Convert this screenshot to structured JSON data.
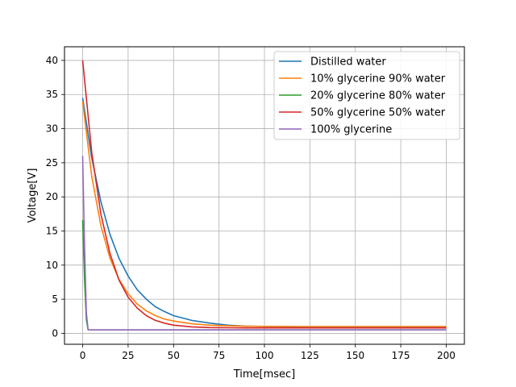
{
  "chart_data": {
    "type": "line",
    "title": "",
    "xlabel": "Time[msec]",
    "ylabel": "Voltage[V]",
    "xlim": [
      -10,
      210
    ],
    "ylim": [
      -1.6,
      42
    ],
    "x_ticks": [
      0,
      25,
      50,
      75,
      100,
      125,
      150,
      175,
      200
    ],
    "y_ticks": [
      0,
      5,
      10,
      15,
      20,
      25,
      30,
      35,
      40
    ],
    "grid": true,
    "legend_position": "upper right",
    "series": [
      {
        "name": "Distilled water",
        "color": "#1f77b4",
        "x": [
          0,
          5,
          10,
          15,
          20,
          25,
          30,
          35,
          40,
          45,
          50,
          60,
          70,
          80,
          90,
          100,
          125,
          150,
          175,
          200
        ],
        "y": [
          34.5,
          25.7,
          19.3,
          14.5,
          11.0,
          8.4,
          6.4,
          5.0,
          3.9,
          3.2,
          2.6,
          1.9,
          1.5,
          1.2,
          1.05,
          1.0,
          0.95,
          0.93,
          0.92,
          0.92
        ]
      },
      {
        "name": "10% glycerine 90% water",
        "color": "#ff7f0e",
        "x": [
          0,
          5,
          10,
          15,
          20,
          25,
          30,
          35,
          40,
          45,
          50,
          60,
          70,
          80,
          90,
          100,
          125,
          150,
          175,
          200
        ],
        "y": [
          34.0,
          23.0,
          15.8,
          11.0,
          7.9,
          5.8,
          4.3,
          3.3,
          2.6,
          2.1,
          1.8,
          1.4,
          1.2,
          1.1,
          1.05,
          1.02,
          1.0,
          1.0,
          1.0,
          1.0
        ]
      },
      {
        "name": "20% glycerine 80% water",
        "color": "#2ca02c",
        "x": [
          0,
          1,
          2,
          3,
          50,
          100,
          150,
          200
        ],
        "y": [
          16.6,
          8.0,
          2.0,
          0.5,
          0.5,
          0.5,
          0.5,
          0.5
        ]
      },
      {
        "name": "50% glycerine 50% water",
        "color": "#d62728",
        "x": [
          0,
          5,
          10,
          15,
          20,
          25,
          30,
          35,
          40,
          45,
          50,
          60,
          70,
          80,
          90,
          100,
          125,
          150,
          175,
          200
        ],
        "y": [
          40.0,
          26.5,
          17.5,
          11.7,
          7.8,
          5.3,
          3.7,
          2.6,
          1.9,
          1.5,
          1.2,
          0.95,
          0.85,
          0.82,
          0.8,
          0.8,
          0.8,
          0.8,
          0.8,
          0.8
        ]
      },
      {
        "name": "100% glycerine",
        "color": "#9467bd",
        "x": [
          0,
          1,
          2,
          3,
          50,
          100,
          150,
          200
        ],
        "y": [
          26.0,
          13.0,
          3.0,
          0.5,
          0.5,
          0.5,
          0.5,
          0.5
        ]
      }
    ]
  }
}
